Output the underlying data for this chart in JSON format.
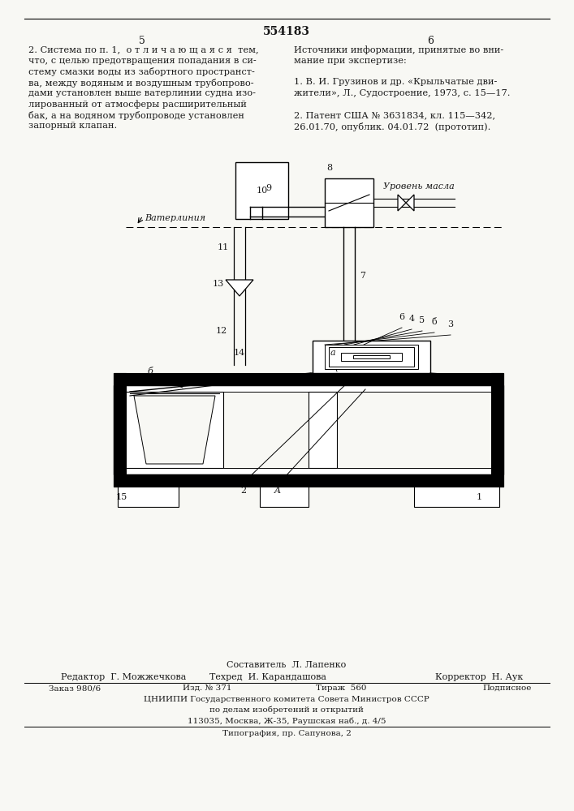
{
  "title": "554183",
  "page_left": "5",
  "page_right": "6",
  "bg_color": "#f8f8f4",
  "text_color": "#1a1a1a",
  "left_column_text": [
    "2. Система по п. 1,  о т л и ч а ю щ а я с я  тем,",
    "что, с целью предотвращения попадания в си-",
    "стему смазки воды из забортного пространст-",
    "ва, между водяным и воздушным трубопрово-",
    "дами установлен выше ватерлинии судна изо-",
    "лированный от атмосферы расширительный",
    "бак, а на водяном трубопроводе установлен",
    "запорный клапан."
  ],
  "right_column_text": [
    "Источники информации, принятые во вни-",
    "мание при экспертизе:",
    "",
    "1. В. И. Грузинов и др. «Крыльчатые дви-",
    "жители», Л., Судостроение, 1973, с. 15—17.",
    "",
    "2. Патент США № 3631834, кл. 115—342,",
    "26.01.70, опублик. 04.01.72  (прототип)."
  ],
  "footer_composer": "Составитель  Л. Лапенко",
  "footer_editor": "Редактор  Г. Можжечкова",
  "footer_tech": "Техред  И. Карандашова",
  "footer_corrector": "Корректор  Н. Аук",
  "footer_order": "Заказ 980/6",
  "footer_izd": "Изд. № 371",
  "footer_tirazh": "Тираж  560",
  "footer_podpisnoe": "Подписное",
  "footer_cniiipi": "ЦНИИПИ Государственного комитета Совета Министров СССР",
  "footer_po_delam": "по делам изобретений и открытий",
  "footer_address": "113035, Москва, Ж-35, Раушская наб., д. 4/5",
  "footer_tipografia": "Типография, пр. Сапунова, 2"
}
